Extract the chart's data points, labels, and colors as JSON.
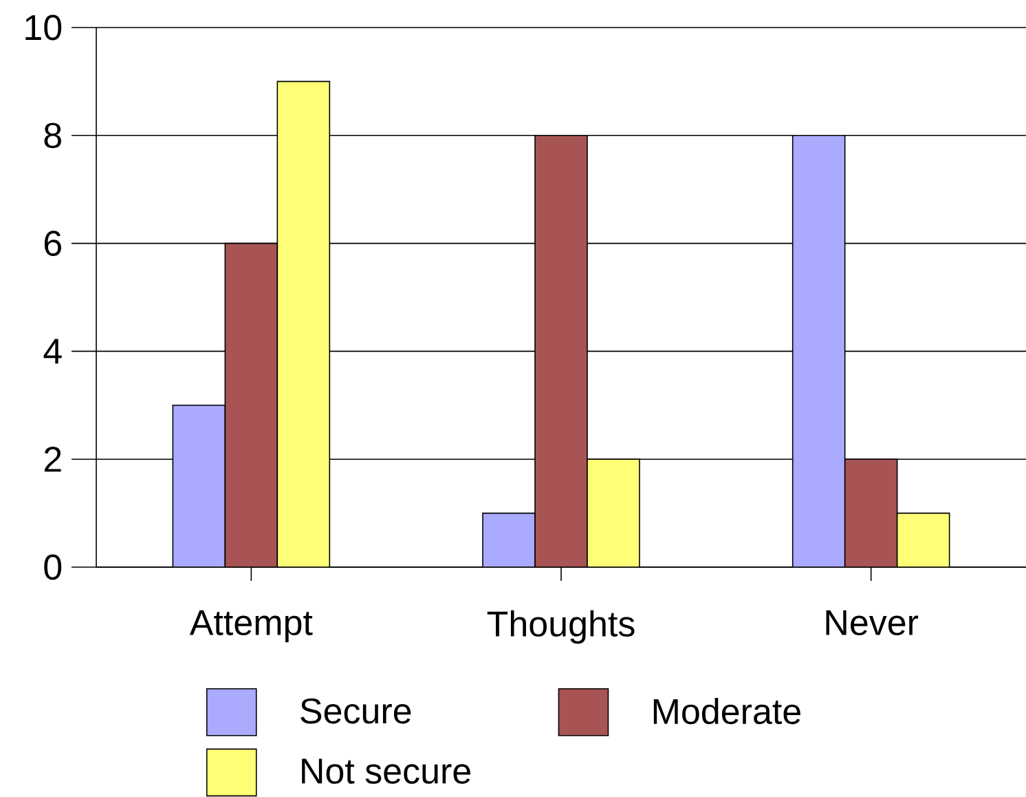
{
  "chart_data": {
    "type": "bar",
    "categories": [
      "Attempt",
      "Thoughts",
      "Never"
    ],
    "series": [
      {
        "name": "Secure",
        "color": "#aaaaff",
        "values": [
          3,
          1,
          8
        ]
      },
      {
        "name": "Moderate",
        "color": "#a85454",
        "values": [
          6,
          8,
          2
        ]
      },
      {
        "name": "Not secure",
        "color": "#ffff77",
        "values": [
          9,
          2,
          1
        ]
      }
    ],
    "ylim": [
      0,
      10
    ],
    "yticks": [
      0,
      2,
      4,
      6,
      8,
      10
    ],
    "grid": "y",
    "legend": "bottom"
  }
}
